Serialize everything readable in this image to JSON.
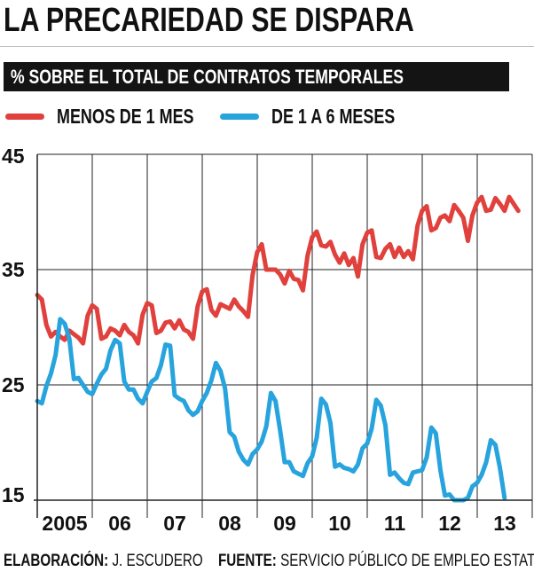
{
  "title": "LA PRECARIEDAD SE DISPARA",
  "subtitle": "% SOBRE EL TOTAL DE CONTRATOS TEMPORALES",
  "footer": {
    "credit_label": "ELABORACIÓN:",
    "credit_value": "J. ESCUDERO",
    "source_label": "FUENTE:",
    "source_value": "SERVICIO PÚBLICO DE EMPLEO ESTATAL"
  },
  "colors": {
    "series_1": "#e0413d",
    "series_2": "#27a3dd",
    "grid": "#222222"
  },
  "chart_data": {
    "type": "line",
    "title": "LA PRECARIEDAD SE DISPARA",
    "ylabel": "% SOBRE EL TOTAL DE CONTRATOS TEMPORALES",
    "ylim": [
      15,
      45
    ],
    "yticks": [
      15,
      25,
      35,
      45
    ],
    "xlim": [
      2005,
      2014
    ],
    "x_ticklabels": [
      {
        "label": "2005",
        "at": 2005.5
      },
      {
        "label": "06",
        "at": 2006.5
      },
      {
        "label": "07",
        "at": 2007.5
      },
      {
        "label": "08",
        "at": 2008.5
      },
      {
        "label": "09",
        "at": 2009.5
      },
      {
        "label": "10",
        "at": 2010.5
      },
      {
        "label": "11",
        "at": 2011.5
      },
      {
        "label": "12",
        "at": 2012.5
      },
      {
        "label": "13",
        "at": 2013.5
      }
    ],
    "grid": true,
    "legend": "top",
    "series": [
      {
        "name": "MENOS DE 1 MES",
        "color": "#e0413d",
        "start": 2005.0,
        "step": 0.0833,
        "values": [
          32.8,
          32.4,
          30.2,
          29.2,
          29.6,
          29.2,
          28.9,
          29.7,
          29.4,
          29.1,
          28.6,
          31.0,
          31.9,
          31.6,
          29.0,
          29.2,
          29.9,
          29.7,
          29.3,
          30.2,
          29.6,
          29.3,
          28.6,
          31.1,
          32.1,
          31.9,
          29.5,
          29.7,
          30.4,
          30.5,
          29.9,
          30.6,
          29.8,
          29.6,
          29.0,
          31.8,
          33.1,
          33.3,
          31.5,
          31.0,
          32.0,
          31.8,
          31.6,
          32.4,
          31.8,
          31.4,
          30.9,
          34.5,
          36.5,
          37.2,
          35.0,
          35.0,
          35.0,
          34.6,
          33.8,
          34.9,
          34.2,
          34.1,
          33.2,
          36.2,
          37.8,
          38.3,
          37.1,
          37.0,
          37.4,
          36.3,
          35.6,
          36.4,
          35.4,
          36.0,
          34.4,
          37.2,
          38.2,
          38.4,
          36.1,
          36.0,
          36.8,
          37.2,
          36.1,
          36.9,
          36.1,
          36.6,
          35.9,
          38.8,
          40.1,
          40.5,
          38.4,
          38.6,
          39.5,
          39.7,
          39.2,
          40.6,
          40.1,
          39.5,
          37.5,
          39.7,
          40.8,
          41.3,
          40.1,
          40.2,
          41.2,
          40.7,
          40.1,
          41.3,
          40.7,
          40.1
        ]
      },
      {
        "name": "DE 1 A 6 MESES",
        "color": "#27a3dd",
        "start": 2005.0,
        "step": 0.0833,
        "values": [
          23.6,
          23.4,
          24.9,
          26.0,
          27.6,
          30.7,
          30.3,
          29.0,
          25.5,
          25.6,
          25.0,
          24.4,
          24.2,
          25.1,
          25.9,
          26.4,
          28.0,
          28.9,
          28.6,
          25.3,
          24.6,
          24.6,
          23.8,
          23.4,
          24.4,
          25.3,
          25.6,
          26.7,
          28.5,
          28.4,
          24.1,
          23.8,
          23.6,
          22.8,
          22.4,
          22.7,
          23.6,
          24.3,
          25.4,
          26.9,
          26.2,
          24.7,
          20.9,
          20.5,
          19.2,
          18.5,
          18.1,
          19.0,
          19.4,
          20.1,
          21.4,
          24.3,
          23.6,
          21.1,
          18.3,
          18.3,
          17.5,
          17.3,
          17.1,
          18.2,
          18.8,
          20.4,
          23.8,
          23.3,
          21.7,
          17.9,
          18.1,
          17.8,
          17.7,
          17.5,
          18.1,
          19.5,
          19.9,
          21.2,
          23.7,
          23.2,
          21.5,
          17.2,
          17.4,
          16.9,
          16.5,
          16.4,
          17.4,
          17.5,
          17.6,
          18.7,
          21.3,
          20.8,
          17.6,
          15.4,
          15.5,
          15.0,
          14.9,
          14.8,
          15.2,
          16.2,
          16.5,
          17.2,
          18.3,
          20.2,
          19.8,
          17.8,
          15.2
        ]
      }
    ]
  }
}
